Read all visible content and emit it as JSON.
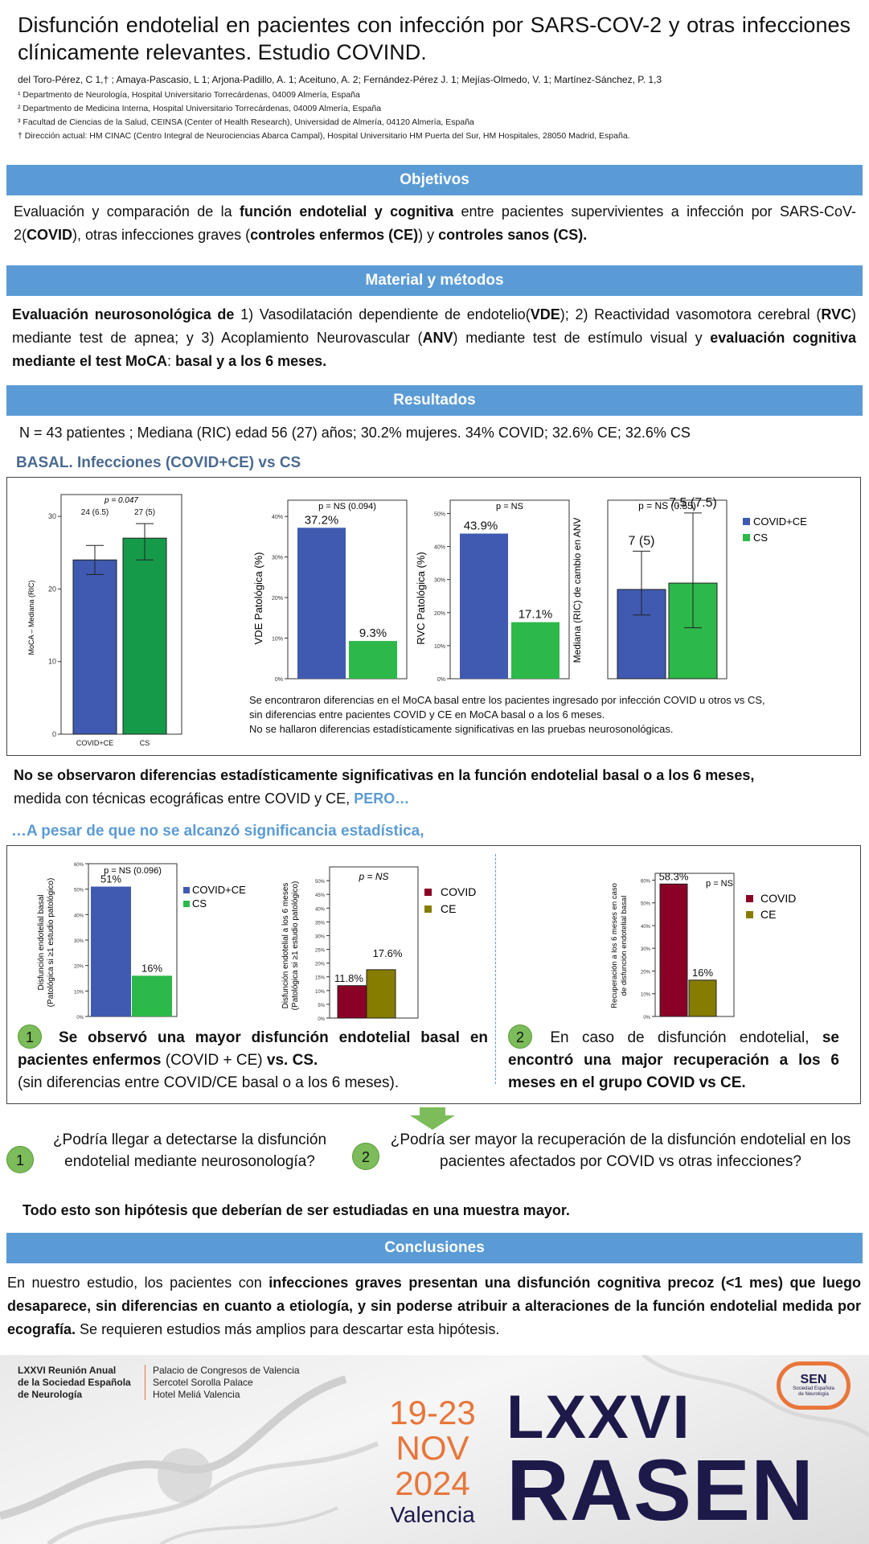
{
  "header": {
    "title": "Disfunción endotelial en pacientes con infección por SARS-COV-2 y otras infecciones clínicamente relevantes. Estudio COVIND.",
    "authors": "del Toro-Pérez, C 1,† ; Amaya-Pascasio, L 1; Arjona-Padillo, A. 1; Aceituno, A. 2; Fernández-Pérez J. 1; Mejías-Olmedo, V. 1; Martínez-Sánchez, P. 1,3",
    "affiliations": [
      "¹ Departmento de Neurología,  Hospital Universitario Torrecárdenas, 04009 Almería, España",
      "² Departmento de Medicina Interna, Hospital Universitario Torrecárdenas, 04009 Almería, España",
      "³ Facultad de Ciencias de la Salud, CEINSA (Center of Health Research), Universidad de Almería, 04120 Almería, España",
      "† Dirección actual: HM CINAC (Centro Integral de Neurociencias Abarca Campal), Hospital Universitario HM Puerta del Sur, HM Hospitales, 28050 Madrid, España."
    ]
  },
  "objetivos": {
    "heading": "Objetivos",
    "t1": "Evaluación y comparación de la ",
    "b1": "función endotelial y cognitiva",
    "t2": " entre pacientes supervivientes a infección por SARS-CoV-2(",
    "b2": "COVID",
    "t3": "), otras infecciones graves (",
    "b3": "controles enfermos (CE)",
    "t4": ") y ",
    "b4": "controles sanos (CS)."
  },
  "metodos": {
    "heading": "Material y métodos",
    "b1": "Evaluación neurosonológica de",
    "t1": " 1) Vasodilatación dependiente de endotelio(",
    "b2": "VDE",
    "t2": "); 2) Reactividad vasomotora cerebral (",
    "b3": "RVC",
    "t3": ") mediante test de apnea; y 3) Acoplamiento Neurovascular (",
    "b4": "ANV",
    "t4": ") mediante test de estímulo visual y ",
    "b5": "evaluación cognitiva mediante el test MoCA",
    "t5": ": ",
    "b6": "basal y a los 6 meses."
  },
  "resultados": {
    "heading": "Resultados",
    "summary": "N = 43 patientes ; Mediana (RIC) edad 56 (27) años; 30.2% mujeres. 34% COVID; 32.6% CE; 32.6% CS",
    "basal_heading": "BASAL. Infecciones (COVID+CE) vs CS",
    "notes": [
      "Se encontraron diferencias en el MoCA basal entre los pacientes ingresado por infección COVID u otros vs CS,",
      "sin diferencias entre pacientes COVID y CE en MoCA basal o a los 6 meses.",
      "No se hallaron diferencias estadísticamente significativas en las pruebas neurosonológicas."
    ],
    "statement1": "No se observaron diferencias estadísticamente significativas en la función endotelial basal o a los 6 meses,",
    "statement2a": "medida con técnicas ecográficas entre COVID y CE, ",
    "statement2b": "PERO…",
    "pesar": "…A pesar de que no se alcanzó significancia estadística,",
    "finding1_bold": "Se observó una mayor disfunción endotelial basal en pacientes enfermos",
    "finding1_t": " (COVID + CE) ",
    "finding1_bold2": "vs. CS.",
    "finding1_sub": "(sin diferencias entre COVID/CE basal o a los 6 meses).",
    "finding2_t": "En caso de disfunción endotelial, ",
    "finding2_bold": "se encontró una major recuperación a los 6 meses en el grupo COVID vs CE.",
    "num1": "1",
    "num2": "2"
  },
  "questions": {
    "q1": "¿Podría llegar a detectarse la disfunción endotelial mediante neurosonología?",
    "q2": "¿Podría ser mayor la recuperación de la disfunción endotelial en los pacientes afectados por COVID vs otras infecciones?",
    "n1": "1",
    "n2": "2",
    "hypothesis": "Todo esto son hipótesis que deberían de ser estudiadas en una muestra mayor."
  },
  "conclusiones": {
    "heading": "Conclusiones",
    "t1": "En nuestro estudio, los pacientes con ",
    "b1": "infecciones graves presentan una disfunción cognitiva precoz (<1 mes) que luego desaparece, sin diferencias en cuanto a etiología, y sin poderse atribuir a alteraciones de la función endotelial medida por ecografía.",
    "t2": " Se requieren estudios más amplios para descartar esta hipótesis."
  },
  "footer": {
    "meeting_l1": "LXXVI Reunión Anual",
    "meeting_l2": "de la Sociedad Española",
    "meeting_l3": "de Neurología",
    "venue_l1": "Palacio de Congresos de Valencia",
    "venue_l2": "Sercotel Sorolla Palace",
    "venue_l3": "Hotel Meliá Valencia",
    "dates": "19-23",
    "month": "NOV",
    "year": "2024",
    "city": "Valencia",
    "brand1": "LXXVI",
    "brand2": "RASEN",
    "logo": "SEN",
    "logo_sub1": "Sociedad Española",
    "logo_sub2": "de Neurología"
  },
  "colors": {
    "covid_ce": "#3f5ab0",
    "cs": "#2db84a",
    "covid": "#8b0026",
    "ce": "#857c00",
    "bar_blue": "#5b9bd5",
    "accent_orange": "#e8763a",
    "brand_navy": "#1d1a4a"
  },
  "chart_data": [
    {
      "type": "bar",
      "id": "moca",
      "categories": [
        "COVID+CE",
        "CS"
      ],
      "values": [
        24,
        27
      ],
      "error": [
        [
          22,
          26
        ],
        [
          24,
          29
        ]
      ],
      "data_labels": [
        "24 (6.5)",
        "27 (5)"
      ],
      "pvalue": "p = 0.047",
      "ylabel": "MoCA – Mediana (RIC)",
      "ylim": [
        0,
        33
      ],
      "yticks": [
        0,
        10,
        20,
        30
      ]
    },
    {
      "type": "bar",
      "id": "vde",
      "categories": [
        "COVID+CE",
        "CS"
      ],
      "values": [
        37.2,
        9.3
      ],
      "data_labels": [
        "37.2%",
        "9.3%"
      ],
      "pvalue": "p = NS (0.094)",
      "ylabel": "VDE Patológica (%)",
      "ylim": [
        0,
        44
      ],
      "yticks": [
        "0%",
        "10%",
        "20%",
        "30%",
        "40%"
      ]
    },
    {
      "type": "bar",
      "id": "rvc",
      "categories": [
        "COVID+CE",
        "CS"
      ],
      "values": [
        43.9,
        17.1
      ],
      "data_labels": [
        "43.9%",
        "17.1%"
      ],
      "pvalue": "p = NS",
      "ylabel": "RVC Patológica (%)",
      "ylim": [
        0,
        54
      ],
      "yticks": [
        "0%",
        "10%",
        "20%",
        "30%",
        "40%",
        "50%"
      ]
    },
    {
      "type": "bar",
      "id": "anv",
      "categories": [
        "COVID+CE",
        "CS"
      ],
      "values": [
        7,
        7.5
      ],
      "error": [
        [
          5,
          10
        ],
        [
          4,
          13
        ]
      ],
      "data_labels": [
        "7 (5)",
        "7.5 (7.5)"
      ],
      "pvalue": "p = NS (0.55)",
      "ylabel": "Mediana (RIC) de cambio en ANV",
      "ylim": [
        0,
        14
      ],
      "legend": [
        "COVID+CE",
        "CS"
      ]
    },
    {
      "type": "bar",
      "id": "disf_basal",
      "categories": [
        "COVID+CE",
        "CS"
      ],
      "values": [
        51,
        16
      ],
      "data_labels": [
        "51%",
        "16%"
      ],
      "pvalue": "p = NS (0.096)",
      "ylabel": "Disfunción endotelial basal (Patológica si ≥1 estudio patológico)",
      "ylim": [
        0,
        60
      ],
      "yticks": [
        "0%",
        "10%",
        "20%",
        "30%",
        "40%",
        "50%",
        "60%"
      ],
      "legend": [
        "COVID+CE",
        "CS"
      ]
    },
    {
      "type": "bar",
      "id": "disf_6m",
      "categories": [
        "COVID",
        "CE"
      ],
      "values": [
        11.8,
        17.6
      ],
      "data_labels": [
        "11.8%",
        "17.6%"
      ],
      "pvalue": "p = NS",
      "ylabel": "Disfunción endotelial a los 6 meses (Patológica si ≥1 estudio patológico)",
      "ylim": [
        0,
        55
      ],
      "yticks": [
        "0%",
        "5%",
        "10%",
        "15%",
        "20%",
        "25%",
        "30%",
        "35%",
        "40%",
        "45%",
        "50%"
      ],
      "legend": [
        "COVID",
        "CE"
      ]
    },
    {
      "type": "bar",
      "id": "recuperacion",
      "categories": [
        "COVID",
        "CE"
      ],
      "values": [
        58.3,
        16
      ],
      "data_labels": [
        "58.3%",
        "16%"
      ],
      "pvalue": "p = NS",
      "ylabel": "Recuperación a los 6 meses en caso de disfunción endotelial basal",
      "ylim": [
        0,
        63
      ],
      "yticks": [
        "0%",
        "10%",
        "20%",
        "30%",
        "40%",
        "50%",
        "60%"
      ],
      "legend": [
        "COVID",
        "CE"
      ]
    }
  ]
}
